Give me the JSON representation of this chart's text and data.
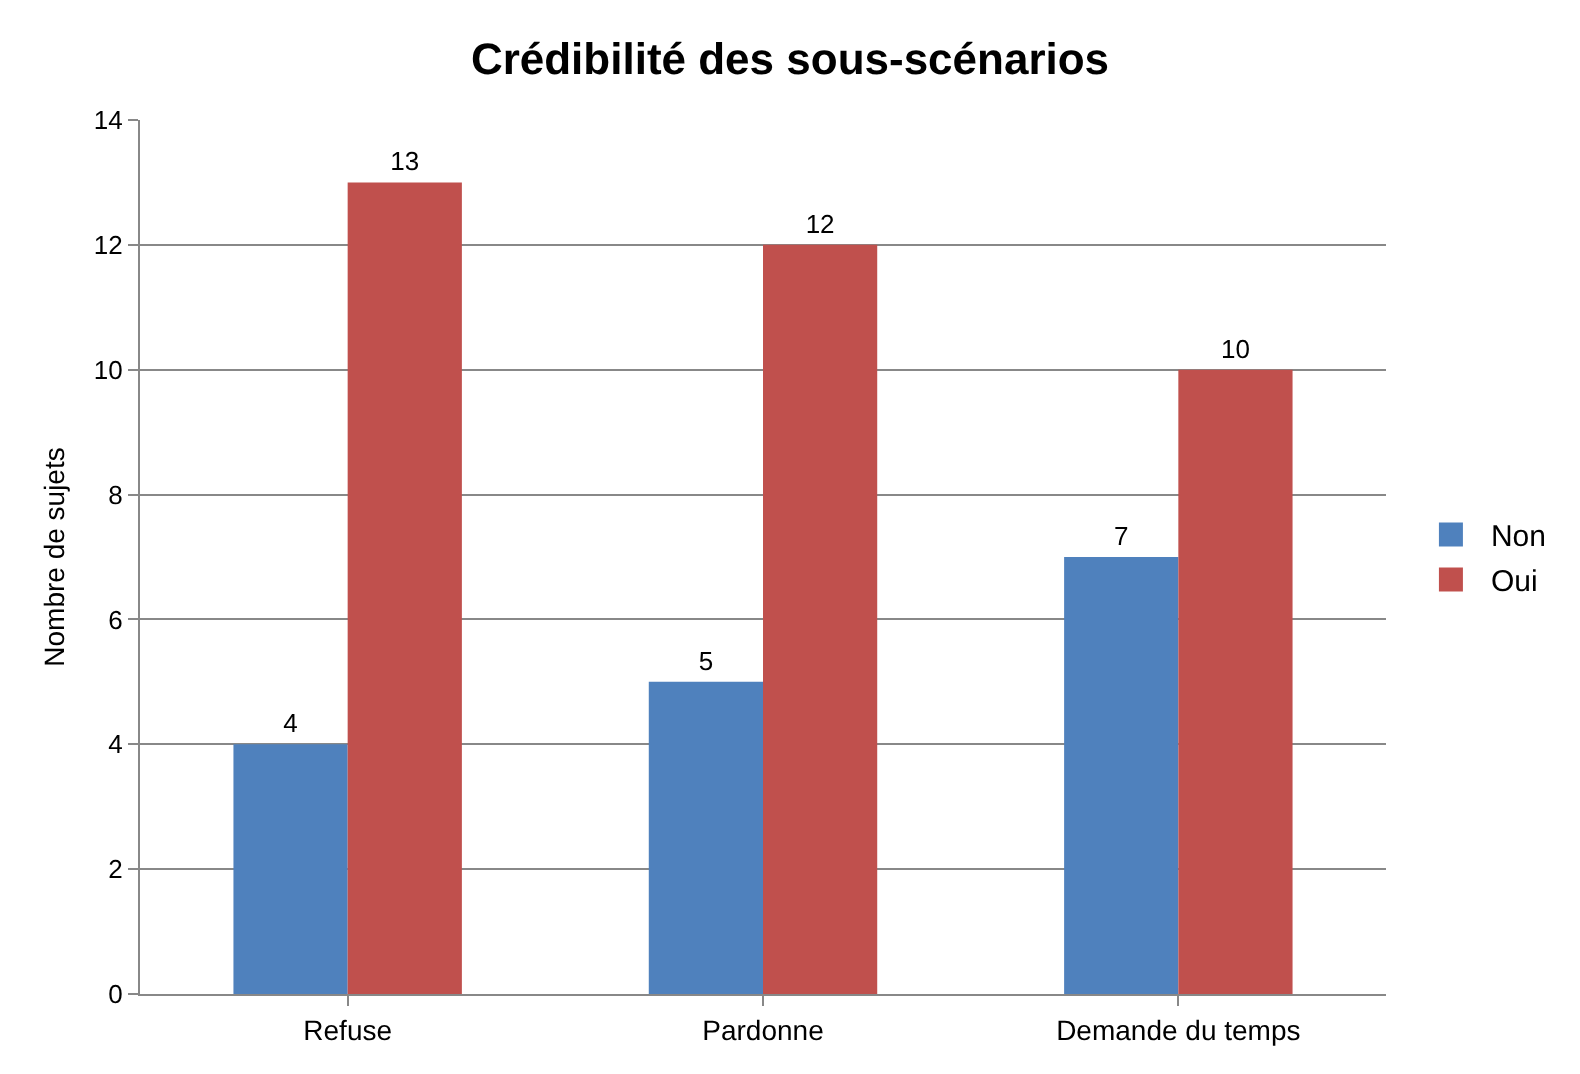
{
  "chart_data": {
    "type": "bar",
    "title": "Crédibilité des sous-scénarios",
    "ylabel": "Nombre de sujets",
    "categories": [
      "Refuse",
      "Pardonne",
      "Demande du temps"
    ],
    "series": [
      {
        "name": "Non",
        "color": "#4f81bd",
        "values": [
          4,
          5,
          7
        ]
      },
      {
        "name": "Oui",
        "color": "#c0504d",
        "values": [
          13,
          12,
          10
        ]
      }
    ],
    "ylim": [
      0,
      14
    ],
    "yticks": [
      0,
      2,
      4,
      6,
      8,
      10,
      12,
      14
    ],
    "grid": "y",
    "legend": "right",
    "data_labels": true
  }
}
